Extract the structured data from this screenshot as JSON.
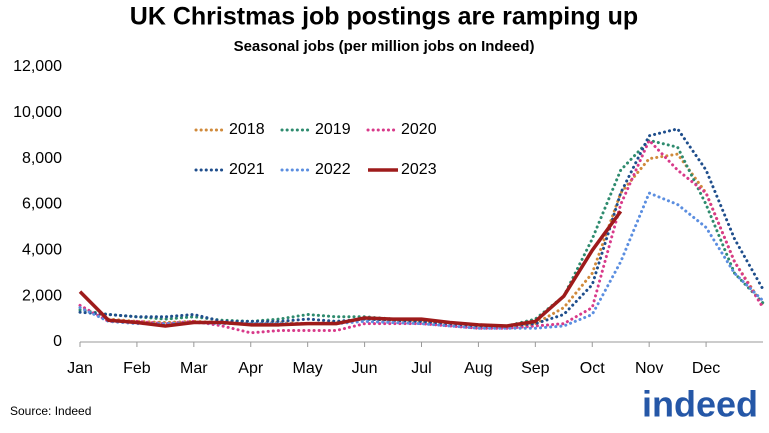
{
  "chart_data": {
    "type": "line",
    "title": "UK Christmas job postings are ramping up",
    "subtitle": "Seasonal jobs (per million jobs on Indeed)",
    "source": "Source: Indeed",
    "logo": "indeed",
    "x": [
      0,
      0.5,
      1,
      1.5,
      2,
      2.5,
      3,
      3.5,
      4,
      4.5,
      5,
      5.5,
      6,
      6.5,
      7,
      7.5,
      8,
      8.5,
      9,
      9.5,
      10,
      10.5,
      11,
      11.5,
      12
    ],
    "xlim": [
      0,
      12
    ],
    "xticks": [
      {
        "value": 0,
        "label": "Jan"
      },
      {
        "value": 1,
        "label": "Feb"
      },
      {
        "value": 2,
        "label": "Mar"
      },
      {
        "value": 3,
        "label": "Apr"
      },
      {
        "value": 4,
        "label": "May"
      },
      {
        "value": 5,
        "label": "Jun"
      },
      {
        "value": 6,
        "label": "Jul"
      },
      {
        "value": 7,
        "label": "Aug"
      },
      {
        "value": 8,
        "label": "Sep"
      },
      {
        "value": 9,
        "label": "Oct"
      },
      {
        "value": 10,
        "label": "Nov"
      },
      {
        "value": 11,
        "label": "Dec"
      }
    ],
    "ylim": [
      0,
      12000
    ],
    "yticks": [
      0,
      {
        "value": 2000,
        "label": "2,000"
      },
      {
        "value": 4000,
        "label": "4,000"
      },
      {
        "value": 6000,
        "label": "6,000"
      },
      {
        "value": 8000,
        "label": "8,000"
      },
      {
        "value": 10000,
        "label": "10,000"
      },
      {
        "value": 12000,
        "label": "12,000"
      }
    ],
    "series": [
      {
        "name": "2018",
        "color": "#d08a3b",
        "style": "dotted",
        "values": [
          1500,
          1000,
          900,
          850,
          900,
          850,
          800,
          850,
          800,
          850,
          1000,
          950,
          900,
          850,
          700,
          650,
          800,
          1500,
          3000,
          6500,
          8000,
          8200,
          6500,
          3500,
          1600
        ]
      },
      {
        "name": "2019",
        "color": "#2e8b6e",
        "style": "dotted",
        "values": [
          1400,
          1200,
          1100,
          1000,
          1100,
          950,
          900,
          1000,
          1200,
          1100,
          1100,
          1000,
          900,
          850,
          750,
          700,
          1000,
          2000,
          4500,
          7500,
          8800,
          8500,
          6000,
          3000,
          1700
        ]
      },
      {
        "name": "2020",
        "color": "#d83a8a",
        "style": "dotted",
        "values": [
          1600,
          900,
          900,
          800,
          900,
          700,
          400,
          500,
          500,
          500,
          800,
          800,
          800,
          700,
          600,
          600,
          700,
          800,
          1500,
          6000,
          8800,
          7500,
          6500,
          3500,
          1500
        ]
      },
      {
        "name": "2021",
        "color": "#1f4e8c",
        "style": "dotted",
        "values": [
          1300,
          1200,
          1100,
          1100,
          1200,
          900,
          900,
          900,
          1000,
          900,
          1000,
          950,
          900,
          800,
          700,
          700,
          800,
          1200,
          2500,
          6500,
          9000,
          9300,
          7500,
          4500,
          2300
        ]
      },
      {
        "name": "2022",
        "color": "#5b8ee0",
        "style": "dotted",
        "values": [
          1500,
          900,
          800,
          800,
          850,
          800,
          800,
          800,
          800,
          800,
          900,
          850,
          800,
          700,
          600,
          600,
          600,
          700,
          1200,
          3500,
          6500,
          6000,
          5000,
          3000,
          1800
        ]
      },
      {
        "name": "2023",
        "color": "#9e1b1b",
        "style": "solid",
        "values": [
          2200,
          950,
          850,
          700,
          850,
          850,
          750,
          750,
          800,
          800,
          1050,
          1000,
          1000,
          850,
          750,
          700,
          900,
          2000,
          4000,
          5700,
          null,
          null,
          null,
          null,
          null
        ]
      }
    ]
  }
}
